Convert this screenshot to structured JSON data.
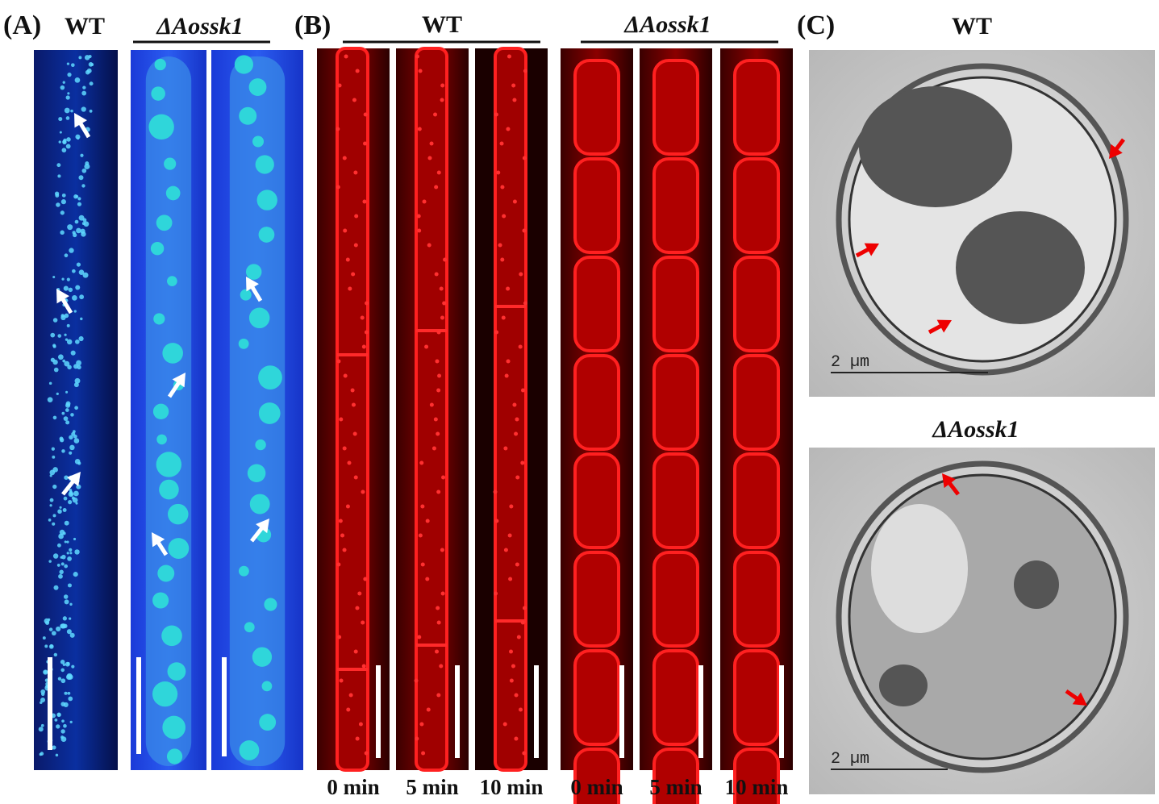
{
  "panel_a": {
    "label": "(A)",
    "wt_title": "WT",
    "mutant_title": "ΔAossk1"
  },
  "panel_b": {
    "label": "(B)",
    "wt_title": "WT",
    "mutant_title": "ΔAossk1",
    "time_labels": [
      "0 min",
      "5 min",
      "10 min",
      "0 min",
      "5 min",
      "10 min"
    ]
  },
  "panel_c": {
    "label": "(C)",
    "wt_title": "WT",
    "mutant_title": "ΔAossk1",
    "scale_labels": [
      "2 µm",
      "2 µm"
    ]
  }
}
